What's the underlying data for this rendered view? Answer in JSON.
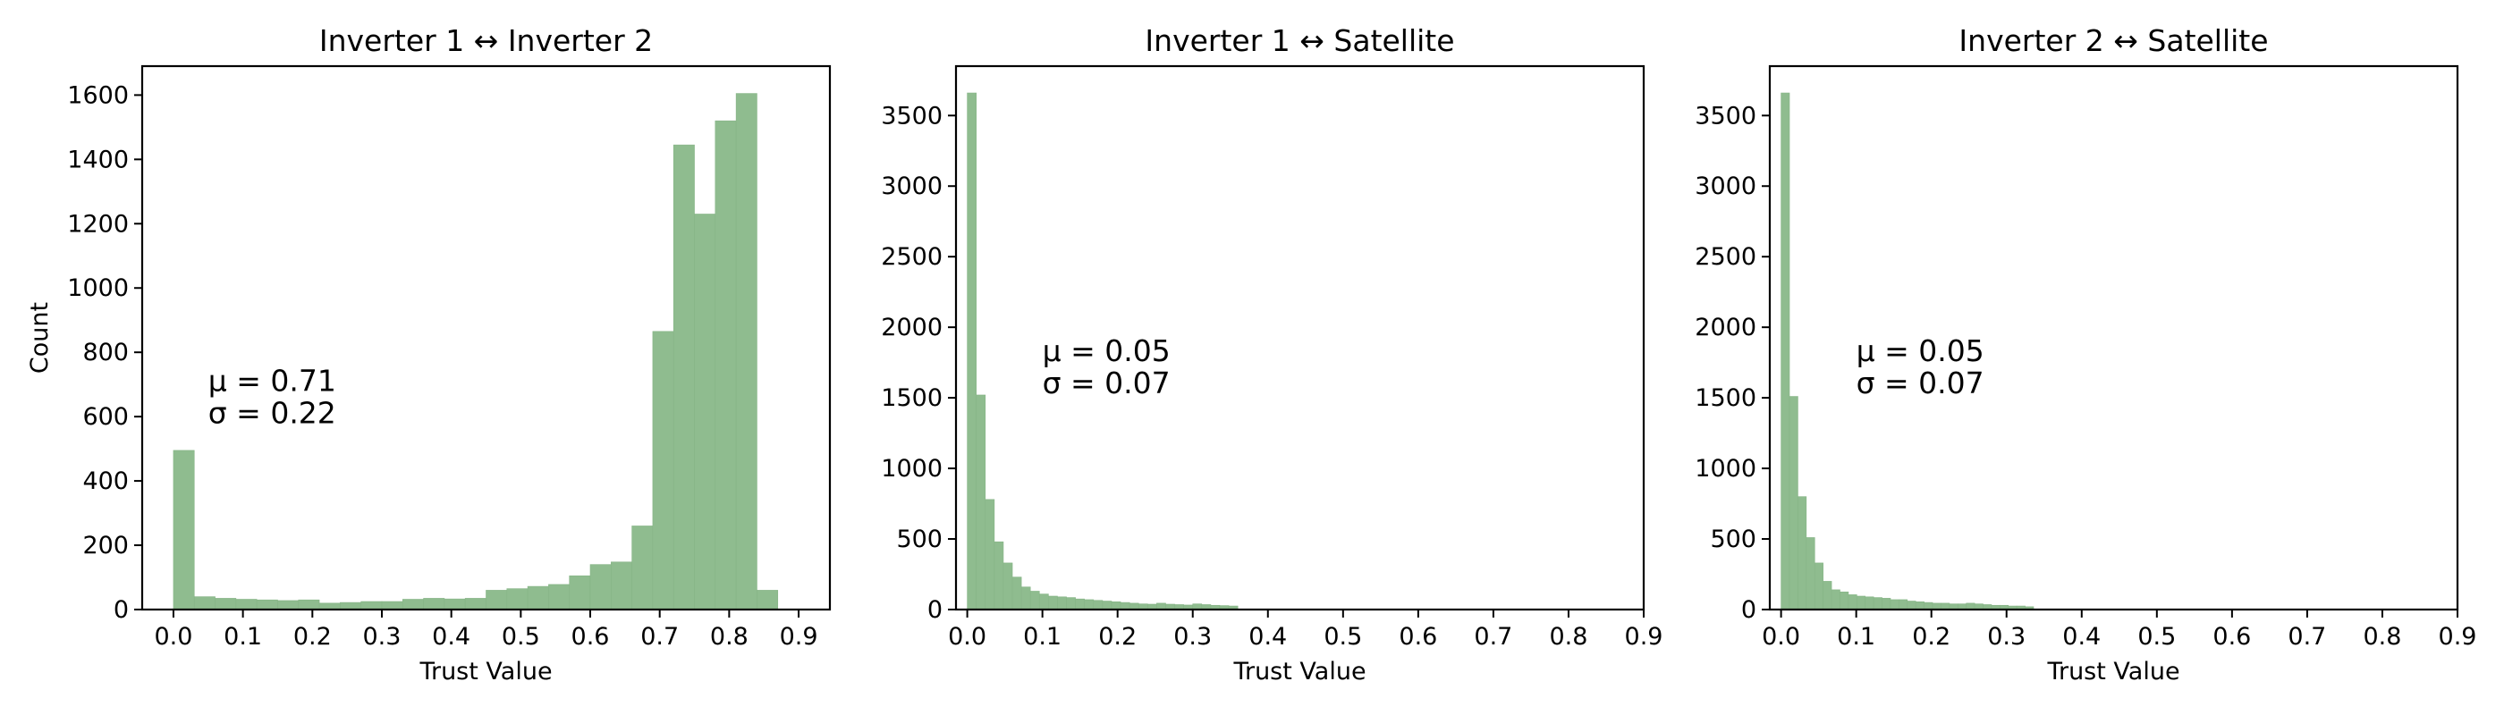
{
  "figure": {
    "bar_color": "#8fbc8f",
    "bar_edge": "#86b486"
  },
  "chart_data": [
    {
      "type": "bar",
      "title": "Inverter 1 ↔ Inverter 2",
      "xlabel": "Trust Value",
      "ylabel": "Count",
      "xlim": [
        -0.045,
        0.945
      ],
      "ylim": [
        0,
        1690
      ],
      "xticks": [
        0.0,
        0.1,
        0.2,
        0.3,
        0.4,
        0.5,
        0.6,
        0.7,
        0.8,
        0.9
      ],
      "xtick_labels": [
        "0.0",
        "0.1",
        "0.2",
        "0.3",
        "0.4",
        "0.5",
        "0.6",
        "0.7",
        "0.8",
        "0.9"
      ],
      "yticks": [
        0,
        200,
        400,
        600,
        800,
        1000,
        1200,
        1400,
        1600
      ],
      "ytick_labels": [
        "0",
        "200",
        "400",
        "600",
        "800",
        "1000",
        "1200",
        "1400",
        "1600"
      ],
      "bin_start": 0.0,
      "bin_width": 0.03,
      "values": [
        495,
        40,
        35,
        32,
        30,
        28,
        30,
        20,
        22,
        25,
        25,
        32,
        35,
        33,
        35,
        60,
        65,
        72,
        78,
        105,
        140,
        148,
        260,
        865,
        1445,
        1230,
        1520,
        1605,
        60
      ],
      "stats": {
        "mu": "μ = 0.71",
        "sigma": "σ = 0.22"
      },
      "stats_pos": {
        "x": 0.05,
        "y": 680
      }
    },
    {
      "type": "bar",
      "title": "Inverter 1 ↔ Satellite",
      "xlabel": "Trust Value",
      "ylabel": "",
      "xlim": [
        -0.015,
        0.9
      ],
      "ylim": [
        0,
        3850
      ],
      "xticks": [
        0.0,
        0.1,
        0.2,
        0.3,
        0.4,
        0.5,
        0.6,
        0.7,
        0.8,
        0.9
      ],
      "xtick_labels": [
        "0.0",
        "0.1",
        "0.2",
        "0.3",
        "0.4",
        "0.5",
        "0.6",
        "0.7",
        "0.8",
        "0.9"
      ],
      "yticks": [
        0,
        500,
        1000,
        1500,
        2000,
        2500,
        3000,
        3500
      ],
      "ytick_labels": [
        "0",
        "500",
        "1000",
        "1500",
        "2000",
        "2500",
        "3000",
        "3500"
      ],
      "bin_start": 0.0,
      "bin_width": 0.012,
      "values": [
        3660,
        1520,
        780,
        480,
        330,
        230,
        160,
        130,
        110,
        95,
        90,
        85,
        75,
        70,
        65,
        60,
        55,
        50,
        45,
        40,
        38,
        45,
        38,
        35,
        32,
        40,
        35,
        30,
        28,
        25
      ],
      "stats": {
        "mu": "μ = 0.05",
        "sigma": "σ = 0.07"
      },
      "stats_pos": {
        "x": 0.1,
        "y": 1760
      }
    },
    {
      "type": "bar",
      "title": "Inverter 2 ↔ Satellite",
      "xlabel": "Trust Value",
      "ylabel": "",
      "xlim": [
        -0.015,
        0.9
      ],
      "ylim": [
        0,
        3850
      ],
      "xticks": [
        0.0,
        0.1,
        0.2,
        0.3,
        0.4,
        0.5,
        0.6,
        0.7,
        0.8,
        0.9
      ],
      "xtick_labels": [
        "0.0",
        "0.1",
        "0.2",
        "0.3",
        "0.4",
        "0.5",
        "0.6",
        "0.7",
        "0.8",
        "0.9"
      ],
      "yticks": [
        0,
        500,
        1000,
        1500,
        2000,
        2500,
        3000,
        3500
      ],
      "ytick_labels": [
        "0",
        "500",
        "1000",
        "1500",
        "2000",
        "2500",
        "3000",
        "3500"
      ],
      "bin_start": 0.0,
      "bin_width": 0.0112,
      "values": [
        3660,
        1510,
        800,
        510,
        330,
        200,
        140,
        125,
        105,
        95,
        90,
        85,
        80,
        70,
        70,
        60,
        55,
        50,
        45,
        45,
        40,
        40,
        45,
        40,
        35,
        30,
        30,
        25,
        25,
        20
      ],
      "stats": {
        "mu": "μ = 0.05",
        "sigma": "σ = 0.07"
      },
      "stats_pos": {
        "x": 0.1,
        "y": 1760
      }
    }
  ]
}
